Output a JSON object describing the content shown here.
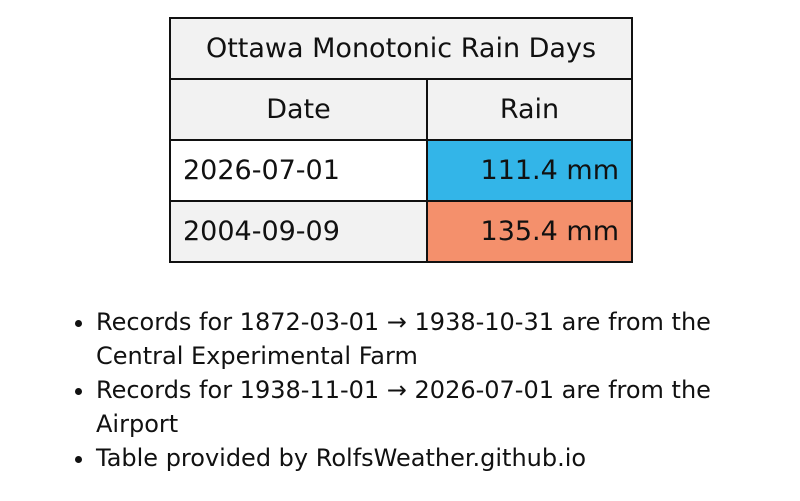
{
  "table": {
    "title": "Ottawa Monotonic Rain Days",
    "headers": [
      "Date",
      "Rain"
    ],
    "rows": [
      [
        "2026-07-01",
        "111.4 mm"
      ],
      [
        "2004-09-09",
        "135.4 mm"
      ]
    ],
    "rain_colors": [
      "#33b5e8",
      "#f4906c"
    ]
  },
  "notes": [
    "Records for 1872-03-01 → 1938-10-31 are from the Central Experimental Farm",
    "Records for 1938-11-01 → 2026-07-01 are from the Airport",
    "Table provided by RolfsWeather.github.io"
  ]
}
